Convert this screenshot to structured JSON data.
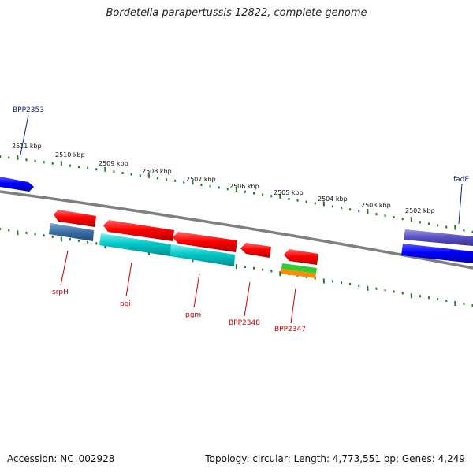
{
  "title": "Bordetella parapertussis 12822, complete genome",
  "footer": {
    "accession": "Accession: NC_002928",
    "summary": "Topology: circular; Length: 4,773,551 bp; Genes: 4,249"
  },
  "colors": {
    "backbone": "#7f7f7f",
    "tick": "#1f7a1f",
    "label_forward": "#0b1f8f",
    "label_reverse": "#cc0000",
    "gene_red": "#ff0000",
    "gene_blue": "#0000ff",
    "gene_cyan": "#00c8c8",
    "gene_steel": "#3a6ea5",
    "gene_violet": "#5a4fc0",
    "gene_green": "#33cc33",
    "gene_orange": "#ff8c00"
  },
  "scale_labels": [
    "2511 kbp",
    "2510 kbp",
    "2509 kbp",
    "2508 kbp",
    "2507 kbp",
    "2506 kbp",
    "2505 kbp",
    "2504 kbp",
    "2503 kbp",
    "2502 kbp"
  ],
  "gene_labels": {
    "forward": [
      "BPP2353",
      "fadE"
    ],
    "reverse": [
      "srpH",
      "pgi",
      "pgm",
      "BPP2348",
      "BPP2347"
    ]
  }
}
